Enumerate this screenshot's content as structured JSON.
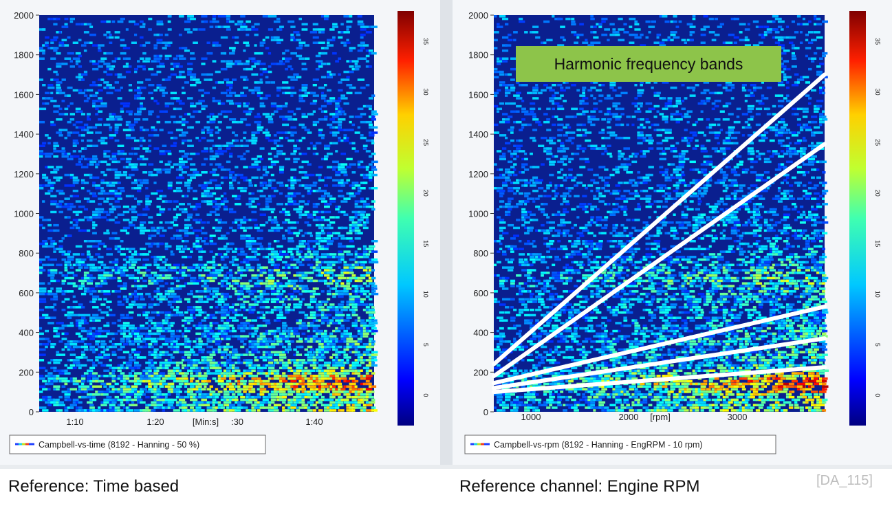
{
  "chart_data": [
    {
      "type": "heatmap",
      "title": "",
      "xlabel": "[Min:s]",
      "ylabel": "",
      "x_ticks": [
        "1:10",
        "1:20",
        ":30",
        "1:40"
      ],
      "y_ticks": [
        "0",
        "200",
        "400",
        "600",
        "800",
        "1000",
        "1200",
        "1400",
        "1600",
        "1800",
        "2000"
      ],
      "ylim": [
        0,
        2000
      ],
      "colorbar_ticks": [
        "0",
        "5",
        "10",
        "15",
        "20",
        "25",
        "30",
        "35"
      ],
      "colorbar_range": [
        -3,
        38
      ],
      "colormap": "jet",
      "legend": "Campbell-vs-time (8192 - Hanning - 50 %)",
      "legend_placement": "bottom-left"
    },
    {
      "type": "heatmap",
      "title": "",
      "xlabel": "[rpm]",
      "ylabel": "",
      "x_ticks": [
        "1000",
        "2000",
        "3000"
      ],
      "xlim": [
        650,
        3950
      ],
      "y_ticks": [
        "0",
        "200",
        "400",
        "600",
        "800",
        "1000",
        "1200",
        "1400",
        "1600",
        "1800",
        "2000"
      ],
      "ylim": [
        0,
        2000
      ],
      "colorbar_ticks": [
        "0",
        "5",
        "10",
        "15",
        "20",
        "25",
        "30",
        "35"
      ],
      "colorbar_range": [
        -3,
        38
      ],
      "colormap": "jet",
      "legend": "Campbell-vs-rpm (8192 - Hanning - EngRPM - 10 rpm)",
      "legend_placement": "bottom-left",
      "annotation": "Harmonic frequency bands",
      "harmonic_lines": [
        {
          "x": [
            650,
            3950
          ],
          "y": [
            240,
            1700
          ]
        },
        {
          "x": [
            650,
            3950
          ],
          "y": [
            180,
            1350
          ]
        },
        {
          "x": [
            650,
            3950
          ],
          "y": [
            145,
            530
          ]
        },
        {
          "x": [
            650,
            3950
          ],
          "y": [
            120,
            370
          ]
        },
        {
          "x": [
            650,
            3950
          ],
          "y": [
            100,
            225
          ]
        }
      ]
    }
  ],
  "captions": {
    "left": "Reference: Time based",
    "right": "Reference channel:  Engine RPM",
    "ref_id": "[DA_115]"
  },
  "colors": {
    "background_dark_blue": "#0a1f8f",
    "harmonic_line": "#ffffff",
    "annotation_box": "#8dc44a"
  }
}
